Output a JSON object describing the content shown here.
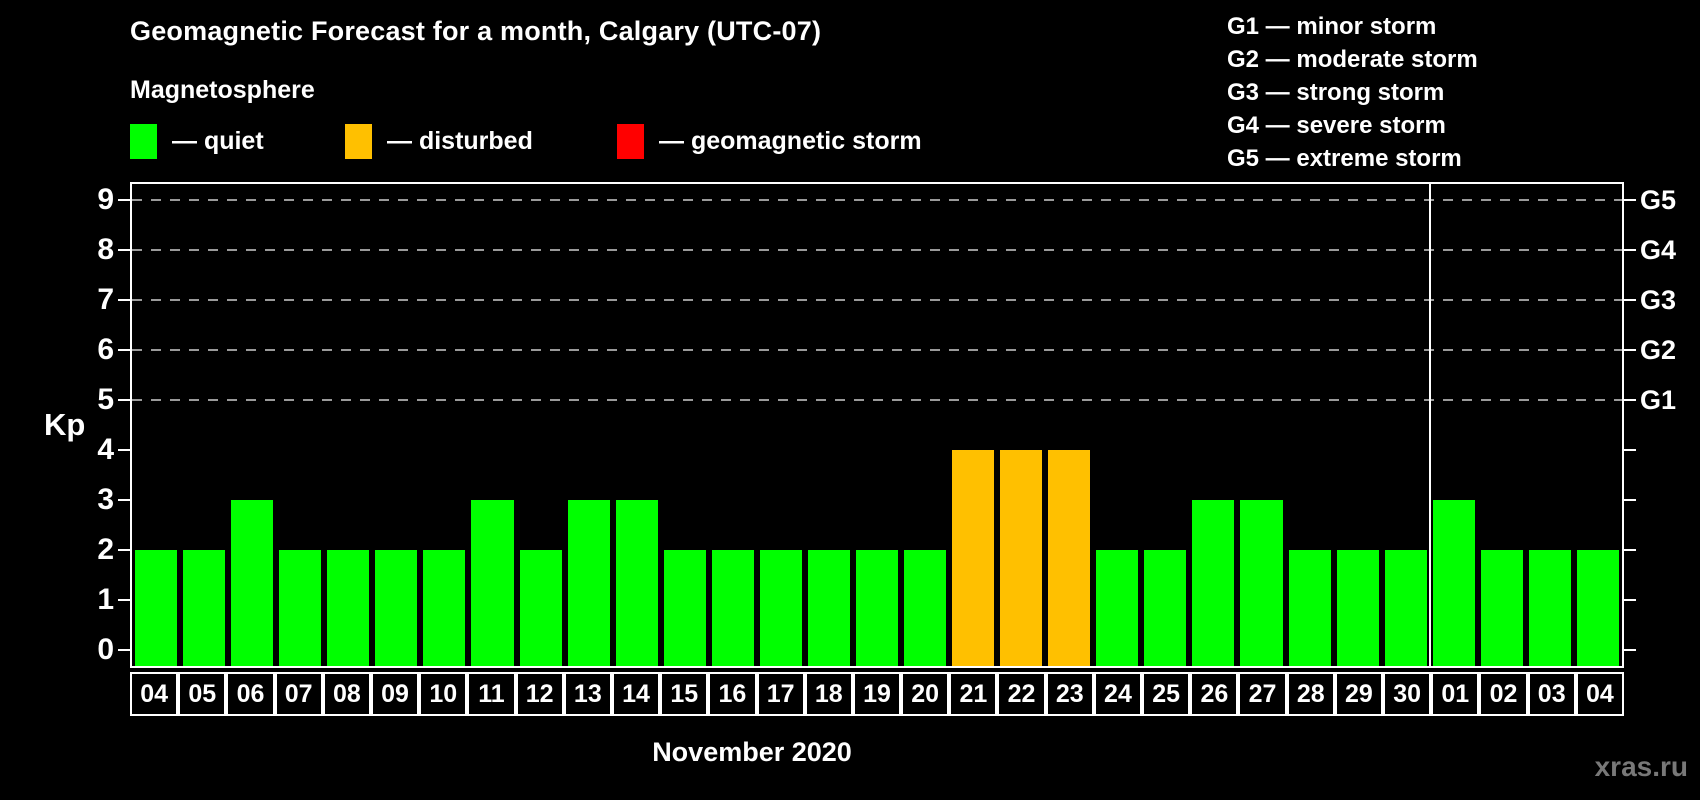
{
  "title": "Geomagnetic Forecast for a month, Calgary (UTC-07)",
  "subtitle": "Magnetosphere",
  "legend": {
    "items": [
      {
        "name": "quiet",
        "label": "— quiet",
        "color": "#00ff00"
      },
      {
        "name": "disturbed",
        "label": "— disturbed",
        "color": "#ffc000"
      },
      {
        "name": "storm",
        "label": "— geomagnetic storm",
        "color": "#ff0000"
      }
    ]
  },
  "g_legend": [
    "G1 — minor storm",
    "G2 — moderate storm",
    "G3 — strong storm",
    "G4 — severe storm",
    "G5 — extreme storm"
  ],
  "watermark": "xras.ru",
  "chart_data": {
    "type": "bar",
    "title": "Geomagnetic Forecast for a month, Calgary (UTC-07)",
    "xlabel": "November 2020",
    "ylabel": "Kp",
    "ylim": [
      0,
      9
    ],
    "yticks": [
      0,
      1,
      2,
      3,
      4,
      5,
      6,
      7,
      8,
      9
    ],
    "gridlines_kp": [
      5,
      6,
      7,
      8,
      9
    ],
    "grid": "dashed, only at G-storm levels",
    "legend_position": "top",
    "right_axis": [
      {
        "kp": 5,
        "label": "G1"
      },
      {
        "kp": 6,
        "label": "G2"
      },
      {
        "kp": 7,
        "label": "G3"
      },
      {
        "kp": 8,
        "label": "G4"
      },
      {
        "kp": 9,
        "label": "G5"
      }
    ],
    "month_separator_after_index": 26,
    "status_colors": {
      "quiet": "#00ff00",
      "disturbed": "#ffc000",
      "storm": "#ff0000"
    },
    "bars": [
      {
        "day": "04",
        "kp": 2,
        "status": "quiet"
      },
      {
        "day": "05",
        "kp": 2,
        "status": "quiet"
      },
      {
        "day": "06",
        "kp": 3,
        "status": "quiet"
      },
      {
        "day": "07",
        "kp": 2,
        "status": "quiet"
      },
      {
        "day": "08",
        "kp": 2,
        "status": "quiet"
      },
      {
        "day": "09",
        "kp": 2,
        "status": "quiet"
      },
      {
        "day": "10",
        "kp": 2,
        "status": "quiet"
      },
      {
        "day": "11",
        "kp": 3,
        "status": "quiet"
      },
      {
        "day": "12",
        "kp": 2,
        "status": "quiet"
      },
      {
        "day": "13",
        "kp": 3,
        "status": "quiet"
      },
      {
        "day": "14",
        "kp": 3,
        "status": "quiet"
      },
      {
        "day": "15",
        "kp": 2,
        "status": "quiet"
      },
      {
        "day": "16",
        "kp": 2,
        "status": "quiet"
      },
      {
        "day": "17",
        "kp": 2,
        "status": "quiet"
      },
      {
        "day": "18",
        "kp": 2,
        "status": "quiet"
      },
      {
        "day": "19",
        "kp": 2,
        "status": "quiet"
      },
      {
        "day": "20",
        "kp": 2,
        "status": "quiet"
      },
      {
        "day": "21",
        "kp": 4,
        "status": "disturbed"
      },
      {
        "day": "22",
        "kp": 4,
        "status": "disturbed"
      },
      {
        "day": "23",
        "kp": 4,
        "status": "disturbed"
      },
      {
        "day": "24",
        "kp": 2,
        "status": "quiet"
      },
      {
        "day": "25",
        "kp": 2,
        "status": "quiet"
      },
      {
        "day": "26",
        "kp": 3,
        "status": "quiet"
      },
      {
        "day": "27",
        "kp": 3,
        "status": "quiet"
      },
      {
        "day": "28",
        "kp": 2,
        "status": "quiet"
      },
      {
        "day": "29",
        "kp": 2,
        "status": "quiet"
      },
      {
        "day": "30",
        "kp": 2,
        "status": "quiet"
      },
      {
        "day": "01",
        "kp": 3,
        "status": "quiet"
      },
      {
        "day": "02",
        "kp": 2,
        "status": "quiet"
      },
      {
        "day": "03",
        "kp": 2,
        "status": "quiet"
      },
      {
        "day": "04",
        "kp": 2,
        "status": "quiet"
      }
    ]
  }
}
